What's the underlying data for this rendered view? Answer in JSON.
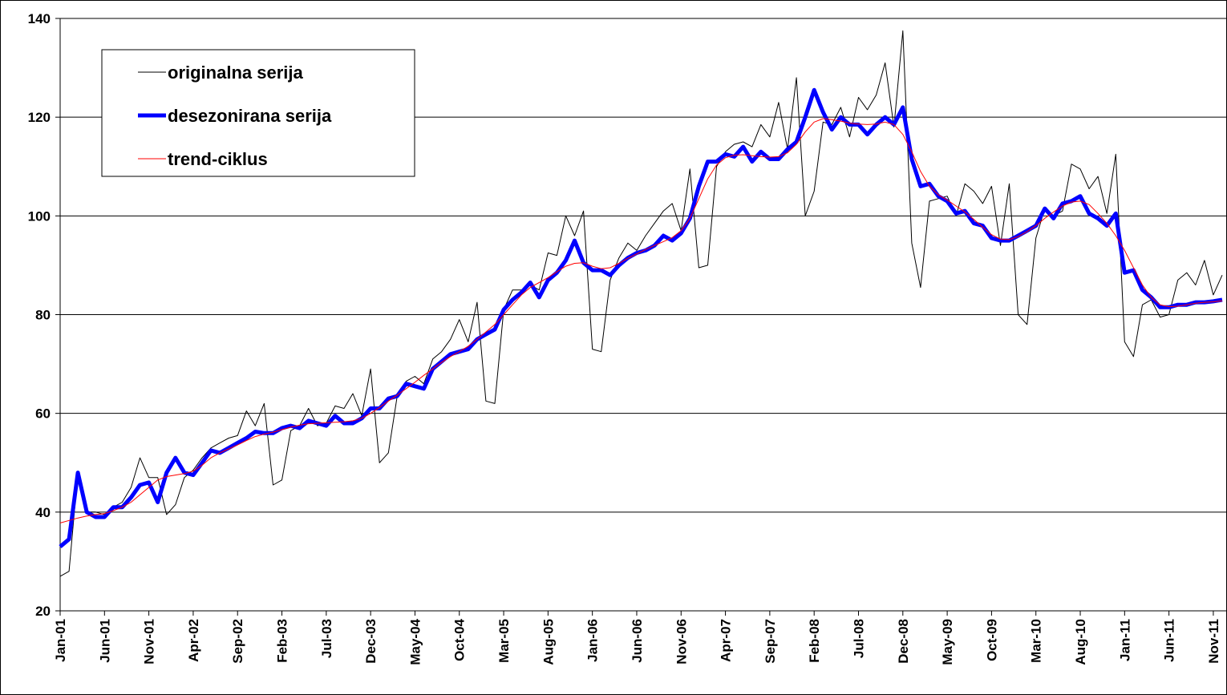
{
  "chart_data": {
    "type": "line",
    "categories": [
      "Jan-01",
      null,
      null,
      null,
      null,
      "Jun-01",
      null,
      null,
      null,
      null,
      "Nov-01",
      null,
      null,
      null,
      null,
      "Apr-02",
      null,
      null,
      null,
      null,
      "Sep-02",
      null,
      null,
      null,
      null,
      "Feb-03",
      null,
      null,
      null,
      null,
      "Jul-03",
      null,
      null,
      null,
      null,
      "Dec-03",
      null,
      null,
      null,
      null,
      "May-04",
      null,
      null,
      null,
      null,
      "Oct-04",
      null,
      null,
      null,
      null,
      "Mar-05",
      null,
      null,
      null,
      null,
      "Aug-05",
      null,
      null,
      null,
      null,
      "Jan-06",
      null,
      null,
      null,
      null,
      "Jun-06",
      null,
      null,
      null,
      null,
      "Nov-06",
      null,
      null,
      null,
      null,
      "Apr-07",
      null,
      null,
      null,
      null,
      "Sep-07",
      null,
      null,
      null,
      null,
      "Feb-08",
      null,
      null,
      null,
      null,
      "Jul-08",
      null,
      null,
      null,
      null,
      "Dec-08",
      null,
      null,
      null,
      null,
      "May-09",
      null,
      null,
      null,
      null,
      "Oct-09",
      null,
      null,
      null,
      null,
      "Mar-10",
      null,
      null,
      null,
      null,
      "Aug-10",
      null,
      null,
      null,
      null,
      "Jan-11",
      null,
      null,
      null,
      null,
      "Jun-11",
      null,
      null,
      null,
      null,
      "Nov-11",
      null
    ],
    "series": [
      {
        "name": "originalna serija",
        "color": "#000000",
        "width": 1,
        "values": [
          27,
          28,
          48,
          40,
          40,
          39.5,
          41,
          42,
          45,
          51,
          47,
          47,
          39.5,
          41.5,
          47,
          48.5,
          51,
          53,
          54,
          55,
          55.5,
          60.5,
          57.5,
          62,
          45.5,
          46.5,
          56.5,
          57.5,
          61,
          57.5,
          58,
          61.5,
          61,
          64,
          59.5,
          69,
          50,
          52,
          63.5,
          66.5,
          67.5,
          66,
          71,
          72.5,
          75,
          79,
          74.5,
          82.5,
          62.5,
          62,
          81,
          85,
          85,
          86,
          85,
          92.5,
          92,
          100,
          96,
          101,
          73,
          72.5,
          87,
          91.5,
          94.5,
          93,
          96,
          98.5,
          101,
          102.5,
          97,
          109.5,
          89.5,
          90,
          110,
          113,
          114.5,
          115,
          114,
          118.5,
          116,
          123,
          113.5,
          128,
          100,
          105,
          119,
          118.5,
          122,
          116,
          124,
          121.5,
          124.5,
          131,
          118,
          137.5,
          94.5,
          85.5,
          103,
          103.5,
          104,
          100,
          106.5,
          105,
          102.5,
          106,
          94,
          106.5,
          80,
          78,
          95.5,
          101.5,
          100,
          101,
          110.5,
          109.5,
          105.5,
          108,
          100.5,
          112.5,
          74.5,
          71.5,
          82,
          83,
          79.5,
          80,
          87,
          88.5,
          86,
          91,
          84,
          88
        ]
      },
      {
        "name": "desezonirana serija",
        "color": "#0000ff",
        "width": 5,
        "values": [
          33,
          34.5,
          48,
          40,
          39,
          39,
          41,
          41,
          43,
          45.5,
          46,
          42,
          48,
          51,
          48,
          47.5,
          50,
          52.5,
          52,
          53,
          54,
          55,
          56.3,
          56,
          56,
          57,
          57.5,
          57,
          58.5,
          58,
          57.5,
          59.5,
          58,
          58,
          59,
          61,
          61,
          63,
          63.5,
          66,
          65.5,
          65,
          69,
          70.5,
          72,
          72.5,
          73,
          75,
          76,
          77,
          81,
          83,
          84.5,
          86.5,
          83.5,
          87,
          88.5,
          91,
          95,
          90.5,
          89,
          89,
          88,
          90,
          91.5,
          92.5,
          93,
          94,
          96,
          95,
          96.5,
          99.5,
          106,
          111,
          111,
          112.5,
          112,
          114,
          111,
          113,
          111.5,
          111.5,
          113.5,
          115,
          120,
          125.5,
          121,
          117.5,
          120,
          118.5,
          118.5,
          116.5,
          118.5,
          120,
          118.5,
          122,
          111.5,
          106,
          106.5,
          104,
          103,
          100.5,
          101,
          98.5,
          98,
          95.5,
          95,
          95,
          96,
          97,
          98,
          101.5,
          99.5,
          102.5,
          103,
          104,
          100.5,
          99.5,
          98,
          100.5,
          88.5,
          89,
          85,
          83.5,
          81.5,
          81.5,
          82,
          82,
          82.5,
          82.5,
          82.7,
          83
        ]
      },
      {
        "name": "trend-ciklus",
        "color": "#ff0000",
        "width": 1,
        "values": [
          37.8,
          38.3,
          38.8,
          39.2,
          39.5,
          39.7,
          40.3,
          41,
          42,
          43.5,
          45,
          46.5,
          47.2,
          47.5,
          47.8,
          48.3,
          49.5,
          51,
          52,
          52.8,
          53.6,
          54.5,
          55.3,
          55.8,
          56.2,
          56.7,
          57.2,
          57.6,
          57.9,
          58,
          58.1,
          58.2,
          58.3,
          58.5,
          59,
          60,
          61.2,
          62.5,
          63.7,
          65,
          66.3,
          67.7,
          69,
          70.3,
          71.5,
          72.5,
          73.6,
          75,
          76.5,
          78,
          80,
          82,
          84,
          85.5,
          86.5,
          87.5,
          88.7,
          89.8,
          90.4,
          90.5,
          89.8,
          89.3,
          89.5,
          90.4,
          91.4,
          92.3,
          93.2,
          94,
          94.8,
          95.6,
          97,
          99.5,
          103.5,
          107.5,
          110.3,
          111.8,
          112.3,
          112.4,
          112.2,
          112,
          111.9,
          112,
          112.8,
          114.5,
          117,
          119,
          119.7,
          119.5,
          119.2,
          118.8,
          118.6,
          118.5,
          118.6,
          119,
          118.5,
          116.5,
          113,
          109,
          106,
          104.3,
          103.2,
          102,
          100.8,
          99.3,
          97.7,
          96.2,
          95.3,
          95.2,
          95.8,
          96.8,
          98,
          99.5,
          100.8,
          102,
          102.8,
          103,
          102.3,
          100.5,
          98.5,
          96,
          93,
          89.5,
          86,
          83.5,
          82,
          81.6,
          81.7,
          82,
          82.3,
          82.5,
          82.6,
          82.8
        ]
      }
    ],
    "ylim": [
      20,
      140
    ],
    "yticks": [
      20,
      40,
      60,
      80,
      100,
      120,
      140
    ],
    "grid": true,
    "legend": "top-left"
  }
}
